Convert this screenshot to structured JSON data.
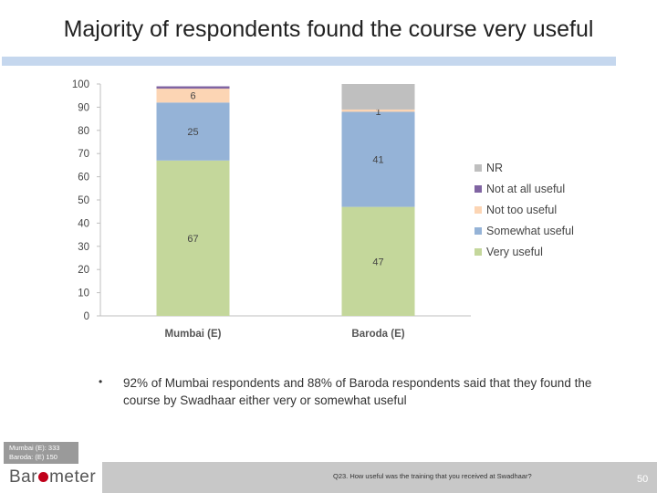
{
  "slide": {
    "title": "Majority of respondents found the course very useful",
    "bullet_symbol": "•",
    "note": "92% of Mumbai respondents and 88% of Baroda respondents said that they found the course by Swadhaar either very or somewhat useful",
    "sample_mumbai": "Mumbai (E): 333",
    "sample_baroda": "Baroda: (E) 150",
    "logo_prefix": "Bar",
    "logo_suffix": "meter",
    "question": "Q23. How useful was the training that you received at Swadhaar?",
    "page_number": "50"
  },
  "chart_data": {
    "type": "bar",
    "stacked": true,
    "title": "",
    "xlabel": "",
    "ylabel": "",
    "ylim": [
      0,
      100
    ],
    "yticks": [
      0,
      10,
      20,
      30,
      40,
      50,
      60,
      70,
      80,
      90,
      100
    ],
    "categories": [
      "Mumbai (E)",
      "Baroda (E)"
    ],
    "series": [
      {
        "name": "Very useful",
        "color": "#c4d79b",
        "values": [
          67,
          47
        ],
        "labels": [
          "67",
          "47"
        ]
      },
      {
        "name": "Somewhat useful",
        "color": "#95b3d7",
        "values": [
          25,
          41
        ],
        "labels": [
          "25",
          "41"
        ]
      },
      {
        "name": "Not too useful",
        "color": "#fcd5b4",
        "values": [
          6,
          1
        ],
        "labels": [
          "6",
          "1"
        ]
      },
      {
        "name": "Not at all useful",
        "color": "#8064a2",
        "values": [
          1,
          0
        ],
        "labels": [
          "",
          ""
        ]
      },
      {
        "name": "NR",
        "color": "#bfbfbf",
        "values": [
          0,
          11
        ],
        "labels": [
          "",
          ""
        ]
      }
    ],
    "legend_order": [
      "NR",
      "Not at all useful",
      "Not too useful",
      "Somewhat useful",
      "Very useful"
    ],
    "legend_position": "right"
  }
}
